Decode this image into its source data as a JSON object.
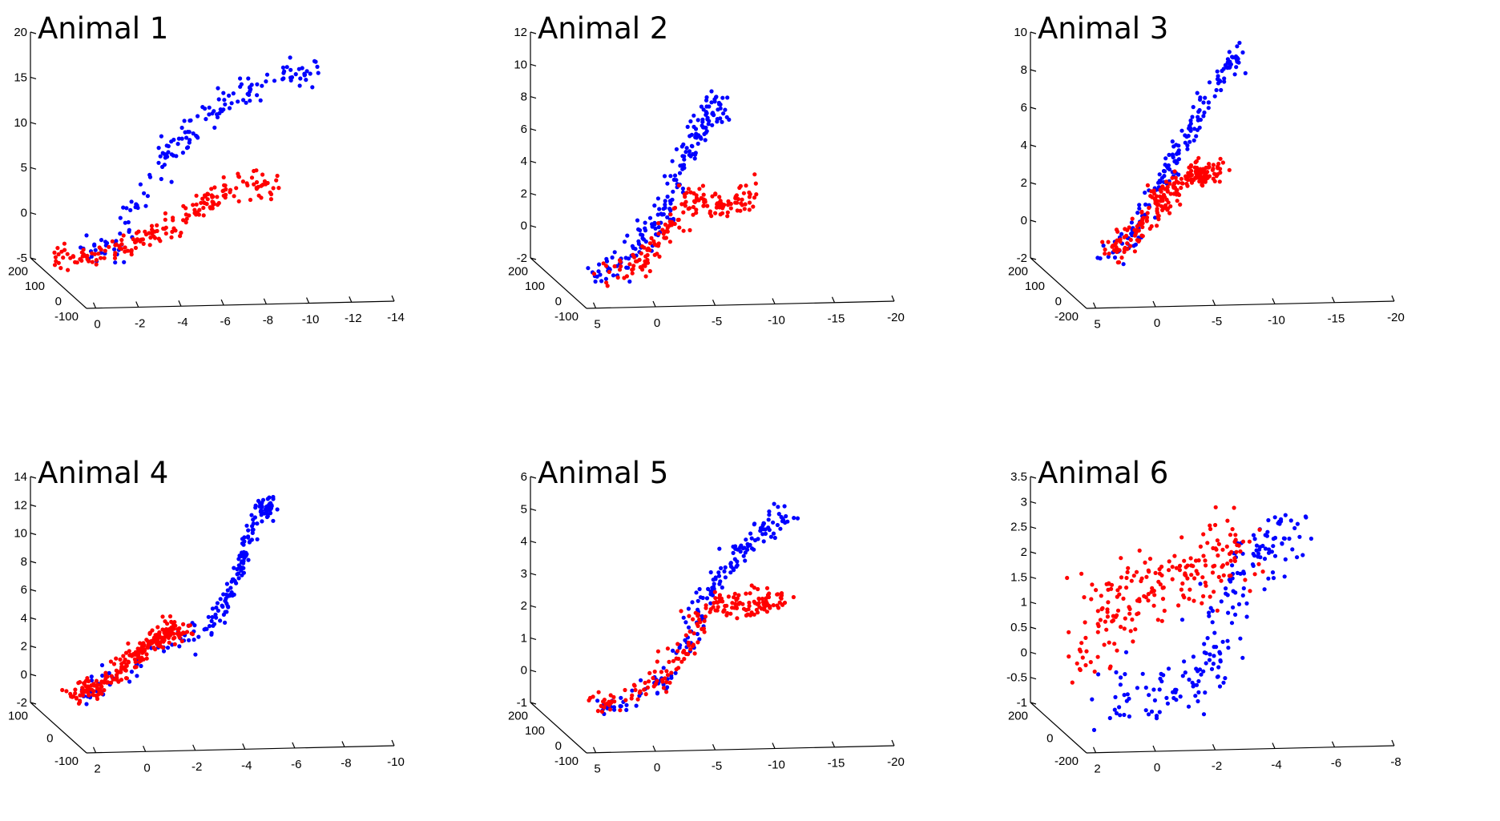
{
  "chart_data": [
    {
      "type": "scatter",
      "title": "Animal 1",
      "x_ticks": [
        "0",
        "-2",
        "-4",
        "-6",
        "-8",
        "-10",
        "-12",
        "-14"
      ],
      "y_ticks": [
        "200",
        "100",
        "0",
        "-100"
      ],
      "z_ticks": [
        "20",
        "15",
        "10",
        "5",
        "0",
        "-5"
      ],
      "xlim": [
        0,
        -14
      ],
      "zlim": [
        -5,
        20
      ],
      "series": [
        {
          "name": "blue",
          "color": "#0000ff",
          "path": [
            [
              -1.2,
              -4.5
            ],
            [
              -2.5,
              -3.8
            ],
            [
              -3.0,
              0.0
            ],
            [
              -4.0,
              3.5
            ],
            [
              -5.2,
              7.5
            ],
            [
              -6.5,
              10.5
            ],
            [
              -8.0,
              13.0
            ],
            [
              -10.0,
              15.0
            ],
            [
              -11.5,
              16.2
            ]
          ],
          "n": 160,
          "spread": [
            0.3,
            0.9
          ]
        },
        {
          "name": "red",
          "color": "#ff0000",
          "path": [
            [
              0.2,
              -5.0
            ],
            [
              -1.5,
              -4.8
            ],
            [
              -3.5,
              -3.2
            ],
            [
              -5.0,
              -1.5
            ],
            [
              -6.5,
              1.0
            ],
            [
              -8.0,
              3.0
            ],
            [
              -10.0,
              3.0
            ]
          ],
          "n": 190,
          "spread": [
            0.25,
            0.7
          ]
        }
      ]
    },
    {
      "type": "scatter",
      "title": "Animal 2",
      "x_ticks": [
        "5",
        "0",
        "-5",
        "-10",
        "-15",
        "-20"
      ],
      "y_ticks": [
        "200",
        "100",
        "0",
        "-100"
      ],
      "z_ticks": [
        "12",
        "10",
        "8",
        "6",
        "4",
        "2",
        "0",
        "-2"
      ],
      "xlim": [
        5,
        -20
      ],
      "zlim": [
        -2,
        12
      ],
      "series": [
        {
          "name": "blue",
          "color": "#0000ff",
          "path": [
            [
              2.5,
              -3.2
            ],
            [
              0.5,
              -2.5
            ],
            [
              -2.0,
              -1.0
            ],
            [
              -3.5,
              1.0
            ],
            [
              -4.5,
              3.5
            ],
            [
              -6.0,
              5.5
            ],
            [
              -7.0,
              7.2
            ],
            [
              -8.0,
              7.5
            ]
          ],
          "n": 190,
          "spread": [
            0.5,
            0.6
          ]
        },
        {
          "name": "red",
          "color": "#ff0000",
          "path": [
            [
              2.0,
              -3.0
            ],
            [
              -1.0,
              -2.5
            ],
            [
              -2.5,
              -1.5
            ],
            [
              -4.0,
              0.2
            ],
            [
              -5.5,
              1.5
            ],
            [
              -7.5,
              1.2
            ],
            [
              -9.0,
              1.5
            ],
            [
              -11.0,
              2.2
            ]
          ],
          "n": 170,
          "spread": [
            0.5,
            0.45
          ]
        }
      ]
    },
    {
      "type": "scatter",
      "title": "Animal 3",
      "x_ticks": [
        "5",
        "0",
        "-5",
        "-10",
        "-15",
        "-20"
      ],
      "y_ticks": [
        "200",
        "100",
        "0",
        "-200"
      ],
      "z_ticks": [
        "10",
        "8",
        "6",
        "4",
        "2",
        "0",
        "-2"
      ],
      "xlim": [
        5,
        -20
      ],
      "zlim": [
        -2,
        10
      ],
      "series": [
        {
          "name": "blue",
          "color": "#0000ff",
          "path": [
            [
              2.0,
              -1.5
            ],
            [
              -0.5,
              -1.3
            ],
            [
              -2.0,
              0.8
            ],
            [
              -3.5,
              2.5
            ],
            [
              -5.0,
              4.0
            ],
            [
              -6.5,
              6.0
            ],
            [
              -8.5,
              8.0
            ],
            [
              -9.5,
              8.7
            ]
          ],
          "n": 170,
          "spread": [
            0.35,
            0.35
          ]
        },
        {
          "name": "red",
          "color": "#ff0000",
          "path": [
            [
              1.0,
              -1.5
            ],
            [
              -0.5,
              -1.3
            ],
            [
              -2.5,
              0.5
            ],
            [
              -3.5,
              1.5
            ],
            [
              -5.0,
              2.2
            ],
            [
              -6.5,
              2.5
            ],
            [
              -8.0,
              2.6
            ]
          ],
          "n": 230,
          "spread": [
            0.5,
            0.35
          ]
        }
      ]
    },
    {
      "type": "scatter",
      "title": "Animal 4",
      "x_ticks": [
        "2",
        "0",
        "-2",
        "-4",
        "-6",
        "-8",
        "-10"
      ],
      "y_ticks": [
        "100",
        "0",
        "-100"
      ],
      "z_ticks": [
        "14",
        "12",
        "10",
        "8",
        "6",
        "4",
        "2",
        "0",
        "-2"
      ],
      "xlim": [
        2,
        -10
      ],
      "zlim": [
        -2,
        14
      ],
      "series": [
        {
          "name": "blue",
          "color": "#0000ff",
          "path": [
            [
              1.5,
              -1.3
            ],
            [
              0.0,
              -0.5
            ],
            [
              -2.5,
              2.0
            ],
            [
              -3.8,
              3.5
            ],
            [
              -4.5,
              5.0
            ],
            [
              -5.0,
              7.0
            ],
            [
              -5.3,
              9.5
            ],
            [
              -5.8,
              11.5
            ],
            [
              -6.3,
              12.0
            ]
          ],
          "n": 190,
          "spread": [
            0.12,
            0.5
          ]
        },
        {
          "name": "red",
          "color": "#ff0000",
          "path": [
            [
              1.6,
              -1.3
            ],
            [
              0.5,
              -1.0
            ],
            [
              -0.5,
              0.5
            ],
            [
              -1.5,
              2.2
            ],
            [
              -2.0,
              2.8
            ],
            [
              -2.8,
              3.0
            ]
          ],
          "n": 260,
          "spread": [
            0.22,
            0.4
          ]
        }
      ]
    },
    {
      "type": "scatter",
      "title": "Animal 5",
      "x_ticks": [
        "5",
        "0",
        "-5",
        "-10",
        "-15",
        "-20"
      ],
      "y_ticks": [
        "200",
        "100",
        "0",
        "-100"
      ],
      "z_ticks": [
        "6",
        "5",
        "4",
        "3",
        "2",
        "1",
        "0",
        "-1"
      ],
      "xlim": [
        5,
        -20
      ],
      "zlim": [
        -1,
        6
      ],
      "series": [
        {
          "name": "blue",
          "color": "#0000ff",
          "path": [
            [
              2.0,
              -1.0
            ],
            [
              0.0,
              -1.1
            ],
            [
              -3.0,
              -0.3
            ],
            [
              -5.5,
              1.0
            ],
            [
              -7.0,
              2.5
            ],
            [
              -8.5,
              3.2
            ],
            [
              -10.5,
              4.0
            ],
            [
              -12.0,
              4.5
            ],
            [
              -13.5,
              4.8
            ]
          ],
          "n": 170,
          "spread": [
            0.5,
            0.2
          ]
        },
        {
          "name": "red",
          "color": "#ff0000",
          "path": [
            [
              2.5,
              -1.0
            ],
            [
              0.5,
              -1.0
            ],
            [
              -3.0,
              -0.3
            ],
            [
              -5.5,
              0.8
            ],
            [
              -7.0,
              2.0
            ],
            [
              -9.0,
              2.1
            ],
            [
              -11.0,
              2.0
            ],
            [
              -13.0,
              2.3
            ]
          ],
          "n": 200,
          "spread": [
            0.55,
            0.2
          ]
        }
      ]
    },
    {
      "type": "scatter",
      "title": "Animal 6",
      "x_ticks": [
        "2",
        "0",
        "-2",
        "-4",
        "-6",
        "-8"
      ],
      "y_ticks": [
        "200",
        "0",
        "-200"
      ],
      "z_ticks": [
        "3.5",
        "3",
        "2.5",
        "2",
        "1.5",
        "1",
        "0.5",
        "0",
        "-0.5",
        "-1"
      ],
      "xlim": [
        2,
        -8
      ],
      "zlim": [
        -1,
        3.5
      ],
      "series": [
        {
          "name": "blue",
          "color": "#0000ff",
          "path": [
            [
              0.8,
              -0.9
            ],
            [
              -0.5,
              -0.9
            ],
            [
              -2.0,
              -0.9
            ],
            [
              -3.0,
              -0.2
            ],
            [
              -3.3,
              0.8
            ],
            [
              -3.8,
              1.8
            ],
            [
              -4.8,
              2.2
            ],
            [
              -5.5,
              2.4
            ]
          ],
          "n": 190,
          "spread": [
            0.35,
            0.3
          ]
        },
        {
          "name": "red",
          "color": "#ff0000",
          "path": [
            [
              1.2,
              -0.4
            ],
            [
              0.6,
              0.2
            ],
            [
              0.3,
              1.2
            ],
            [
              -1.0,
              1.3
            ],
            [
              -2.5,
              1.5
            ],
            [
              -3.2,
              2.0
            ],
            [
              -4.0,
              2.2
            ]
          ],
          "n": 210,
          "spread": [
            0.45,
            0.35
          ]
        }
      ]
    }
  ]
}
